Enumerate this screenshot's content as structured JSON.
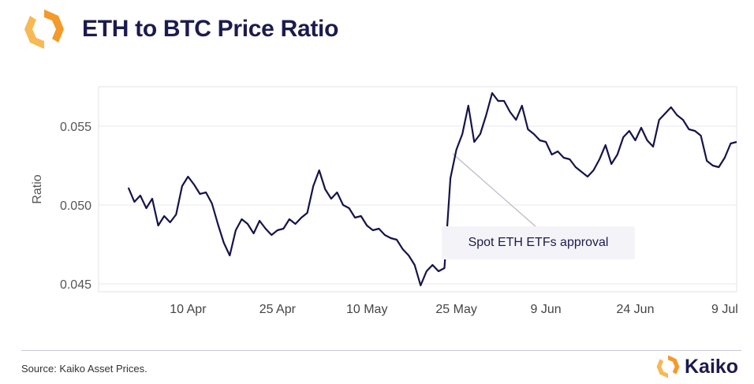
{
  "header": {
    "title": "ETH to BTC Price Ratio"
  },
  "footer": {
    "source": "Source: Kaiko Asset Prices.",
    "brand": "Kaiko"
  },
  "colors": {
    "line": "#14144a",
    "logo_orange": "#f39a2a",
    "logo_orange_light": "#f7b955",
    "title": "#1b1b4f"
  },
  "icons": [
    "kaiko-logo-icon"
  ],
  "chart_data": {
    "type": "line",
    "title": "",
    "xlabel": "",
    "ylabel": "Ratio",
    "grid": true,
    "x_range": [
      "2024-03-26",
      "2024-07-11"
    ],
    "ylim": [
      0.0445,
      0.0575
    ],
    "x_ticks": [
      {
        "label": "10 Apr",
        "date": "2024-04-10"
      },
      {
        "label": "25 Apr",
        "date": "2024-04-25"
      },
      {
        "label": "10 May",
        "date": "2024-05-10"
      },
      {
        "label": "25 May",
        "date": "2024-05-25"
      },
      {
        "label": "9 Jun",
        "date": "2024-06-09"
      },
      {
        "label": "24 Jun",
        "date": "2024-06-24"
      },
      {
        "label": "9 Jul",
        "date": "2024-07-09"
      }
    ],
    "y_ticks": [
      {
        "label": "0.045",
        "value": 0.045
      },
      {
        "label": "0.050",
        "value": 0.05
      },
      {
        "label": "0.055",
        "value": 0.055
      }
    ],
    "annotation": {
      "text": "Spot ETH ETFs approval",
      "date": "2024-05-24",
      "value": 0.0535
    },
    "series": [
      {
        "points": [
          [
            "2024-03-31",
            0.0511
          ],
          [
            "2024-04-01",
            0.0502
          ],
          [
            "2024-04-02",
            0.0506
          ],
          [
            "2024-04-03",
            0.0498
          ],
          [
            "2024-04-04",
            0.0504
          ],
          [
            "2024-04-05",
            0.0487
          ],
          [
            "2024-04-06",
            0.0493
          ],
          [
            "2024-04-07",
            0.0489
          ],
          [
            "2024-04-08",
            0.0494
          ],
          [
            "2024-04-09",
            0.0512
          ],
          [
            "2024-04-10",
            0.0518
          ],
          [
            "2024-04-11",
            0.0513
          ],
          [
            "2024-04-12",
            0.0507
          ],
          [
            "2024-04-13",
            0.0508
          ],
          [
            "2024-04-14",
            0.0501
          ],
          [
            "2024-04-15",
            0.0488
          ],
          [
            "2024-04-16",
            0.0476
          ],
          [
            "2024-04-17",
            0.0468
          ],
          [
            "2024-04-18",
            0.0484
          ],
          [
            "2024-04-19",
            0.0491
          ],
          [
            "2024-04-20",
            0.0488
          ],
          [
            "2024-04-21",
            0.0482
          ],
          [
            "2024-04-22",
            0.049
          ],
          [
            "2024-04-23",
            0.0485
          ],
          [
            "2024-04-24",
            0.0481
          ],
          [
            "2024-04-25",
            0.0484
          ],
          [
            "2024-04-26",
            0.0485
          ],
          [
            "2024-04-27",
            0.0491
          ],
          [
            "2024-04-28",
            0.0488
          ],
          [
            "2024-04-29",
            0.0492
          ],
          [
            "2024-04-30",
            0.0495
          ],
          [
            "2024-05-01",
            0.0512
          ],
          [
            "2024-05-02",
            0.0522
          ],
          [
            "2024-05-03",
            0.051
          ],
          [
            "2024-05-04",
            0.0504
          ],
          [
            "2024-05-05",
            0.0508
          ],
          [
            "2024-05-06",
            0.05
          ],
          [
            "2024-05-07",
            0.0498
          ],
          [
            "2024-05-08",
            0.0492
          ],
          [
            "2024-05-09",
            0.0493
          ],
          [
            "2024-05-10",
            0.0487
          ],
          [
            "2024-05-11",
            0.0484
          ],
          [
            "2024-05-12",
            0.0485
          ],
          [
            "2024-05-13",
            0.0481
          ],
          [
            "2024-05-14",
            0.0479
          ],
          [
            "2024-05-15",
            0.0478
          ],
          [
            "2024-05-16",
            0.0472
          ],
          [
            "2024-05-17",
            0.0468
          ],
          [
            "2024-05-18",
            0.0462
          ],
          [
            "2024-05-19",
            0.0449
          ],
          [
            "2024-05-20",
            0.0458
          ],
          [
            "2024-05-21",
            0.0462
          ],
          [
            "2024-05-22",
            0.0458
          ],
          [
            "2024-05-23",
            0.046
          ],
          [
            "2024-05-24",
            0.0517
          ],
          [
            "2024-05-25",
            0.0535
          ],
          [
            "2024-05-26",
            0.0545
          ],
          [
            "2024-05-27",
            0.0563
          ],
          [
            "2024-05-28",
            0.054
          ],
          [
            "2024-05-29",
            0.0545
          ],
          [
            "2024-05-30",
            0.0557
          ],
          [
            "2024-05-31",
            0.0571
          ],
          [
            "2024-06-01",
            0.0566
          ],
          [
            "2024-06-02",
            0.0566
          ],
          [
            "2024-06-03",
            0.0559
          ],
          [
            "2024-06-04",
            0.0554
          ],
          [
            "2024-06-05",
            0.0563
          ],
          [
            "2024-06-06",
            0.0548
          ],
          [
            "2024-06-07",
            0.0545
          ],
          [
            "2024-06-08",
            0.0541
          ],
          [
            "2024-06-09",
            0.054
          ],
          [
            "2024-06-10",
            0.0532
          ],
          [
            "2024-06-11",
            0.0534
          ],
          [
            "2024-06-12",
            0.053
          ],
          [
            "2024-06-13",
            0.0529
          ],
          [
            "2024-06-14",
            0.0524
          ],
          [
            "2024-06-15",
            0.0521
          ],
          [
            "2024-06-16",
            0.0518
          ],
          [
            "2024-06-17",
            0.0522
          ],
          [
            "2024-06-18",
            0.0529
          ],
          [
            "2024-06-19",
            0.0538
          ],
          [
            "2024-06-20",
            0.0526
          ],
          [
            "2024-06-21",
            0.0532
          ],
          [
            "2024-06-22",
            0.0543
          ],
          [
            "2024-06-23",
            0.0547
          ],
          [
            "2024-06-24",
            0.0541
          ],
          [
            "2024-06-25",
            0.0549
          ],
          [
            "2024-06-26",
            0.0541
          ],
          [
            "2024-06-27",
            0.0537
          ],
          [
            "2024-06-28",
            0.0554
          ],
          [
            "2024-06-29",
            0.0558
          ],
          [
            "2024-06-30",
            0.0562
          ],
          [
            "2024-07-01",
            0.0557
          ],
          [
            "2024-07-02",
            0.0554
          ],
          [
            "2024-07-03",
            0.0548
          ],
          [
            "2024-07-04",
            0.0547
          ],
          [
            "2024-07-05",
            0.0544
          ],
          [
            "2024-07-06",
            0.0528
          ],
          [
            "2024-07-07",
            0.0525
          ],
          [
            "2024-07-08",
            0.0524
          ],
          [
            "2024-07-09",
            0.053
          ],
          [
            "2024-07-10",
            0.0539
          ],
          [
            "2024-07-11",
            0.054
          ]
        ]
      }
    ]
  }
}
